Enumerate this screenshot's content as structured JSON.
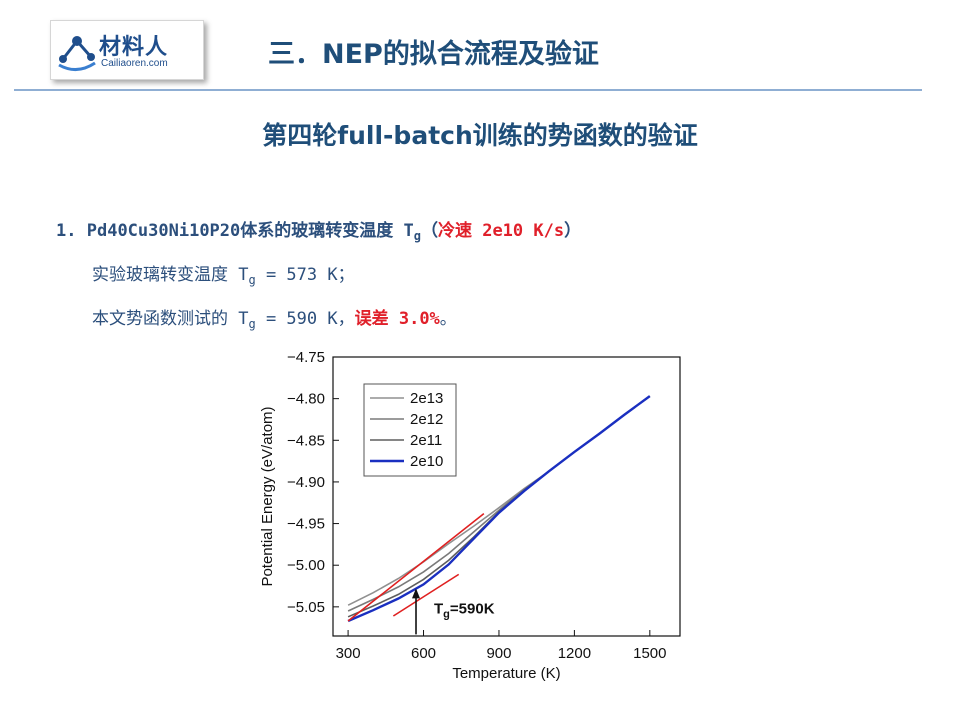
{
  "logo": {
    "text_cn": "材料人",
    "text_en": "Cailiaoren.com"
  },
  "header": {
    "title": "三．NEP的拟合流程及验证"
  },
  "subtitle": "第四轮full-batch训练的势函数的验证",
  "item1": {
    "number": "1.",
    "text": "Pd40Cu30Ni10P20体系的玻璃转变温度 T",
    "sub": "g",
    "paren_open": "（",
    "highlight": "冷速 2e10 K/s",
    "paren_close": "）"
  },
  "item2": {
    "text": "实验玻璃转变温度 T",
    "sub": "g",
    "value": " = 573 K；"
  },
  "item3": {
    "text": "本文势函数测试的 T",
    "sub": "g",
    "value": " = 590 K，",
    "highlight": "误差 3.0%",
    "end": "。"
  },
  "chart_data": {
    "type": "line",
    "xlabel": "Temperature (K)",
    "ylabel": "Potential Energy (eV/atom)",
    "xlim": [
      240,
      1620
    ],
    "ylim": [
      -5.085,
      -4.75
    ],
    "xticks": [
      300,
      600,
      900,
      1200,
      1500
    ],
    "yticks": [
      -4.75,
      -4.8,
      -4.85,
      -4.9,
      -4.95,
      -5.0,
      -5.05
    ],
    "ytick_labels": [
      "−4.75",
      "−4.80",
      "−4.85",
      "−4.90",
      "−4.95",
      "−5.00",
      "−5.05"
    ],
    "legend": {
      "placement": "top-left",
      "entries": [
        "2e13",
        "2e12",
        "2e11",
        "2e10"
      ]
    },
    "series": [
      {
        "name": "2e13",
        "color": "#909090",
        "x": [
          300,
          400,
          500,
          600,
          700,
          800,
          900,
          1000,
          1100,
          1200,
          1300,
          1400,
          1500
        ],
        "y": [
          -5.048,
          -5.033,
          -5.016,
          -4.996,
          -4.974,
          -4.953,
          -4.931,
          -4.908,
          -4.887,
          -4.864,
          -4.842,
          -4.819,
          -4.797
        ]
      },
      {
        "name": "2e12",
        "color": "#7a7a7a",
        "x": [
          300,
          400,
          500,
          600,
          700,
          800,
          900,
          1000,
          1100,
          1200,
          1300,
          1400,
          1500
        ],
        "y": [
          -5.055,
          -5.041,
          -5.026,
          -5.008,
          -4.986,
          -4.96,
          -4.934,
          -4.909,
          -4.887,
          -4.864,
          -4.842,
          -4.819,
          -4.797
        ]
      },
      {
        "name": "2e11",
        "color": "#5e5e5e",
        "x": [
          300,
          400,
          500,
          600,
          700,
          800,
          900,
          1000,
          1100,
          1200,
          1300,
          1400,
          1500
        ],
        "y": [
          -5.062,
          -5.049,
          -5.035,
          -5.017,
          -4.994,
          -4.966,
          -4.936,
          -4.91,
          -4.887,
          -4.864,
          -4.842,
          -4.819,
          -4.797
        ]
      },
      {
        "name": "2e10",
        "color": "#1a2fc0",
        "x": [
          300,
          400,
          500,
          600,
          700,
          800,
          900,
          1000,
          1100,
          1200,
          1300,
          1400,
          1500
        ],
        "y": [
          -5.067,
          -5.054,
          -5.04,
          -5.023,
          -4.999,
          -4.968,
          -4.937,
          -4.911,
          -4.887,
          -4.864,
          -4.842,
          -4.819,
          -4.797
        ]
      }
    ],
    "fit_lines": [
      {
        "color": "#e02020",
        "x": [
          300,
          840
        ],
        "y": [
          -5.067,
          -4.938
        ]
      },
      {
        "color": "#e02020",
        "x": [
          480,
          740
        ],
        "y": [
          -5.061,
          -5.011
        ]
      }
    ],
    "annotation": {
      "text": "T",
      "sub": "g",
      "suffix": "=590K",
      "x": 590,
      "y": -5.023
    }
  }
}
